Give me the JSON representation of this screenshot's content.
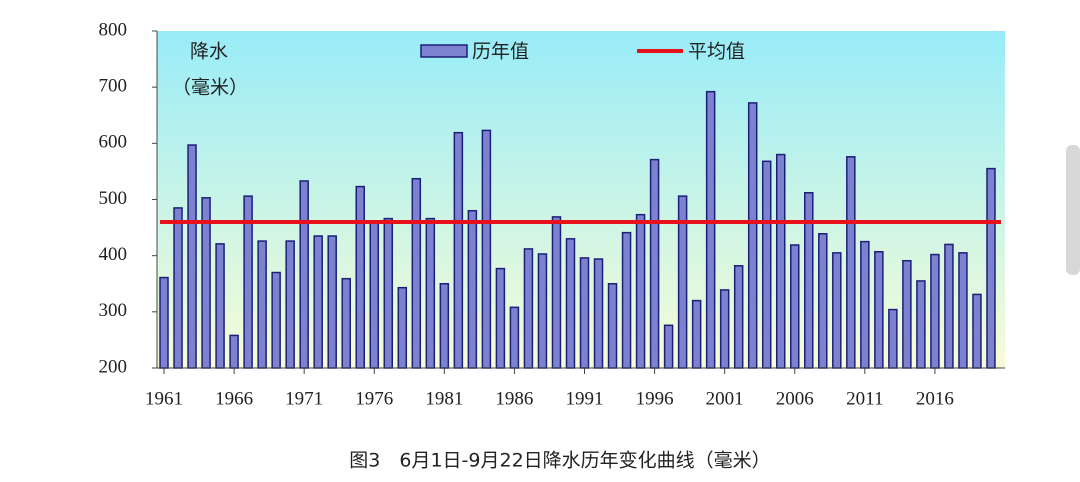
{
  "chart_data": {
    "type": "bar",
    "ylabel_lines": [
      "降水",
      "（毫米）"
    ],
    "caption": "图3　6月1日-9月22日降水历年变化曲线（毫米）",
    "x": [
      1961,
      1962,
      1963,
      1964,
      1965,
      1966,
      1967,
      1968,
      1969,
      1970,
      1971,
      1972,
      1973,
      1974,
      1975,
      1976,
      1977,
      1978,
      1979,
      1980,
      1981,
      1982,
      1983,
      1984,
      1985,
      1986,
      1987,
      1988,
      1989,
      1990,
      1991,
      1992,
      1993,
      1994,
      1995,
      1996,
      1997,
      1998,
      1999,
      2000,
      2001,
      2002,
      2003,
      2004,
      2005,
      2006,
      2007,
      2008,
      2009,
      2010,
      2011,
      2012,
      2013,
      2014,
      2015,
      2016,
      2017,
      2018,
      2019,
      2020
    ],
    "series": [
      {
        "name": "历年值",
        "color": "#7c82d0",
        "values": [
          361,
          485,
          597,
          503,
          421,
          258,
          506,
          426,
          370,
          426,
          533,
          435,
          435,
          359,
          523,
          462,
          466,
          343,
          537,
          466,
          350,
          619,
          480,
          623,
          377,
          308,
          412,
          403,
          469,
          430,
          396,
          394,
          350,
          441,
          473,
          571,
          276,
          506,
          320,
          692,
          339,
          382,
          672,
          568,
          580,
          419,
          512,
          439,
          405,
          576,
          425,
          407,
          304,
          391,
          355,
          402,
          420,
          405,
          331,
          555
        ]
      }
    ],
    "average": {
      "name": "平均值",
      "color": "#e8101a",
      "value": 460
    },
    "xlim": [
      1960.5,
      2021
    ],
    "xticks": [
      1961,
      1966,
      1971,
      1976,
      1981,
      1986,
      1991,
      1996,
      2001,
      2006,
      2011,
      2016
    ],
    "ylim": [
      200,
      800
    ],
    "yticks": [
      200,
      300,
      400,
      500,
      600,
      700,
      800
    ]
  }
}
